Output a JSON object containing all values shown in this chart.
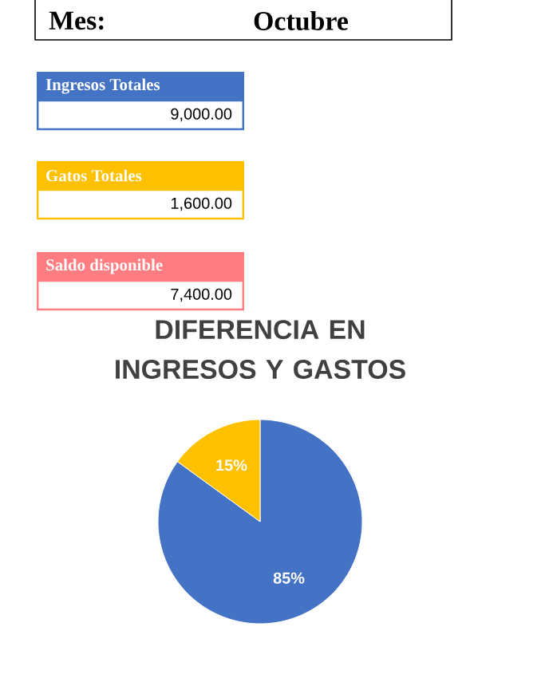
{
  "chart_data": [
    {
      "type": "other",
      "annotations": [
        "Mes:",
        "Octubre",
        "Ingresos Totales",
        "9,000.00",
        "Gatos Totales",
        "1,600.00",
        "Saldo disponible",
        "7,400.00"
      ],
      "colors": [
        "#4472c4",
        "#ffc000",
        "#ff7c80"
      ]
    },
    {
      "type": "pie",
      "title": "DIFERENCIA EN INGRESOS Y GASTOS",
      "categories": [
        null,
        null
      ],
      "values": [
        85,
        15
      ],
      "colors": [
        "#4472c4",
        "#ffc000"
      ],
      "value_labels": [
        "85%",
        "15%"
      ]
    }
  ]
}
